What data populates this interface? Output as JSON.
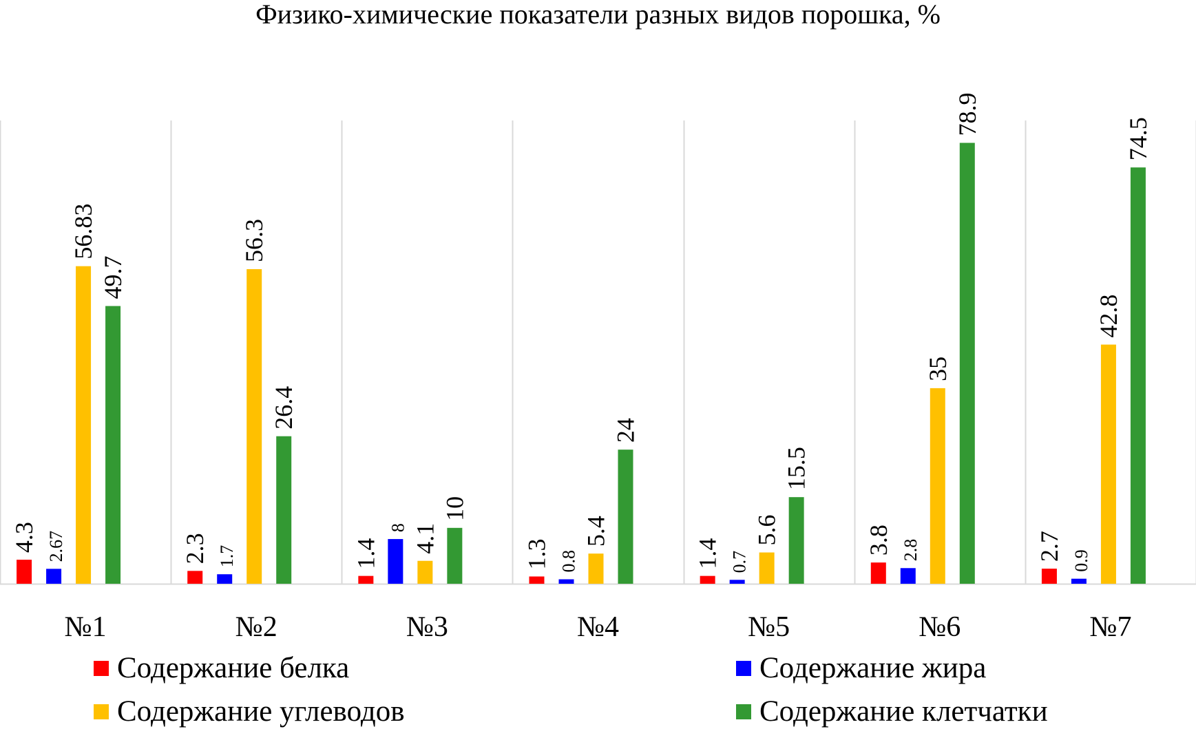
{
  "chart_data": {
    "type": "bar",
    "title": "Физико-химические показатели разных видов порошка, %",
    "categories": [
      "№1",
      "№2",
      "№3",
      "№4",
      "№5",
      "№6",
      "№7"
    ],
    "series": [
      {
        "name": "Содержание белка",
        "color": "#ff0000",
        "values": [
          4.3,
          2.3,
          1.4,
          1.3,
          1.4,
          3.8,
          2.7
        ],
        "labels": [
          "4.3",
          "2.3",
          "1.4",
          "1.3",
          "1.4",
          "3.8",
          "2.7"
        ]
      },
      {
        "name": "Содержание жира",
        "color": "#0000ff",
        "values": [
          2.67,
          1.7,
          8,
          0.8,
          0.7,
          2.8,
          0.9
        ],
        "labels": [
          "2.67",
          "1.7",
          "8",
          "0.8",
          "0.7",
          "2.8",
          "0.9"
        ]
      },
      {
        "name": "Содержание углеводов",
        "color": "#ffc000",
        "values": [
          56.83,
          56.3,
          4.1,
          5.4,
          5.6,
          35,
          42.8
        ],
        "labels": [
          "56.83",
          "56.3",
          "4.1",
          "5.4",
          "5.6",
          "35",
          "42.8"
        ]
      },
      {
        "name": "Содержание клетчатки",
        "color": "#339933",
        "values": [
          49.7,
          26.4,
          10,
          24,
          15.5,
          78.9,
          74.5
        ],
        "labels": [
          "49.7",
          "26.4",
          "10",
          "24",
          "15.5",
          "78.9",
          "74.5"
        ]
      }
    ],
    "ylim": [
      0,
      85
    ],
    "grid": "vertical category separators",
    "legend_position": "bottom"
  }
}
